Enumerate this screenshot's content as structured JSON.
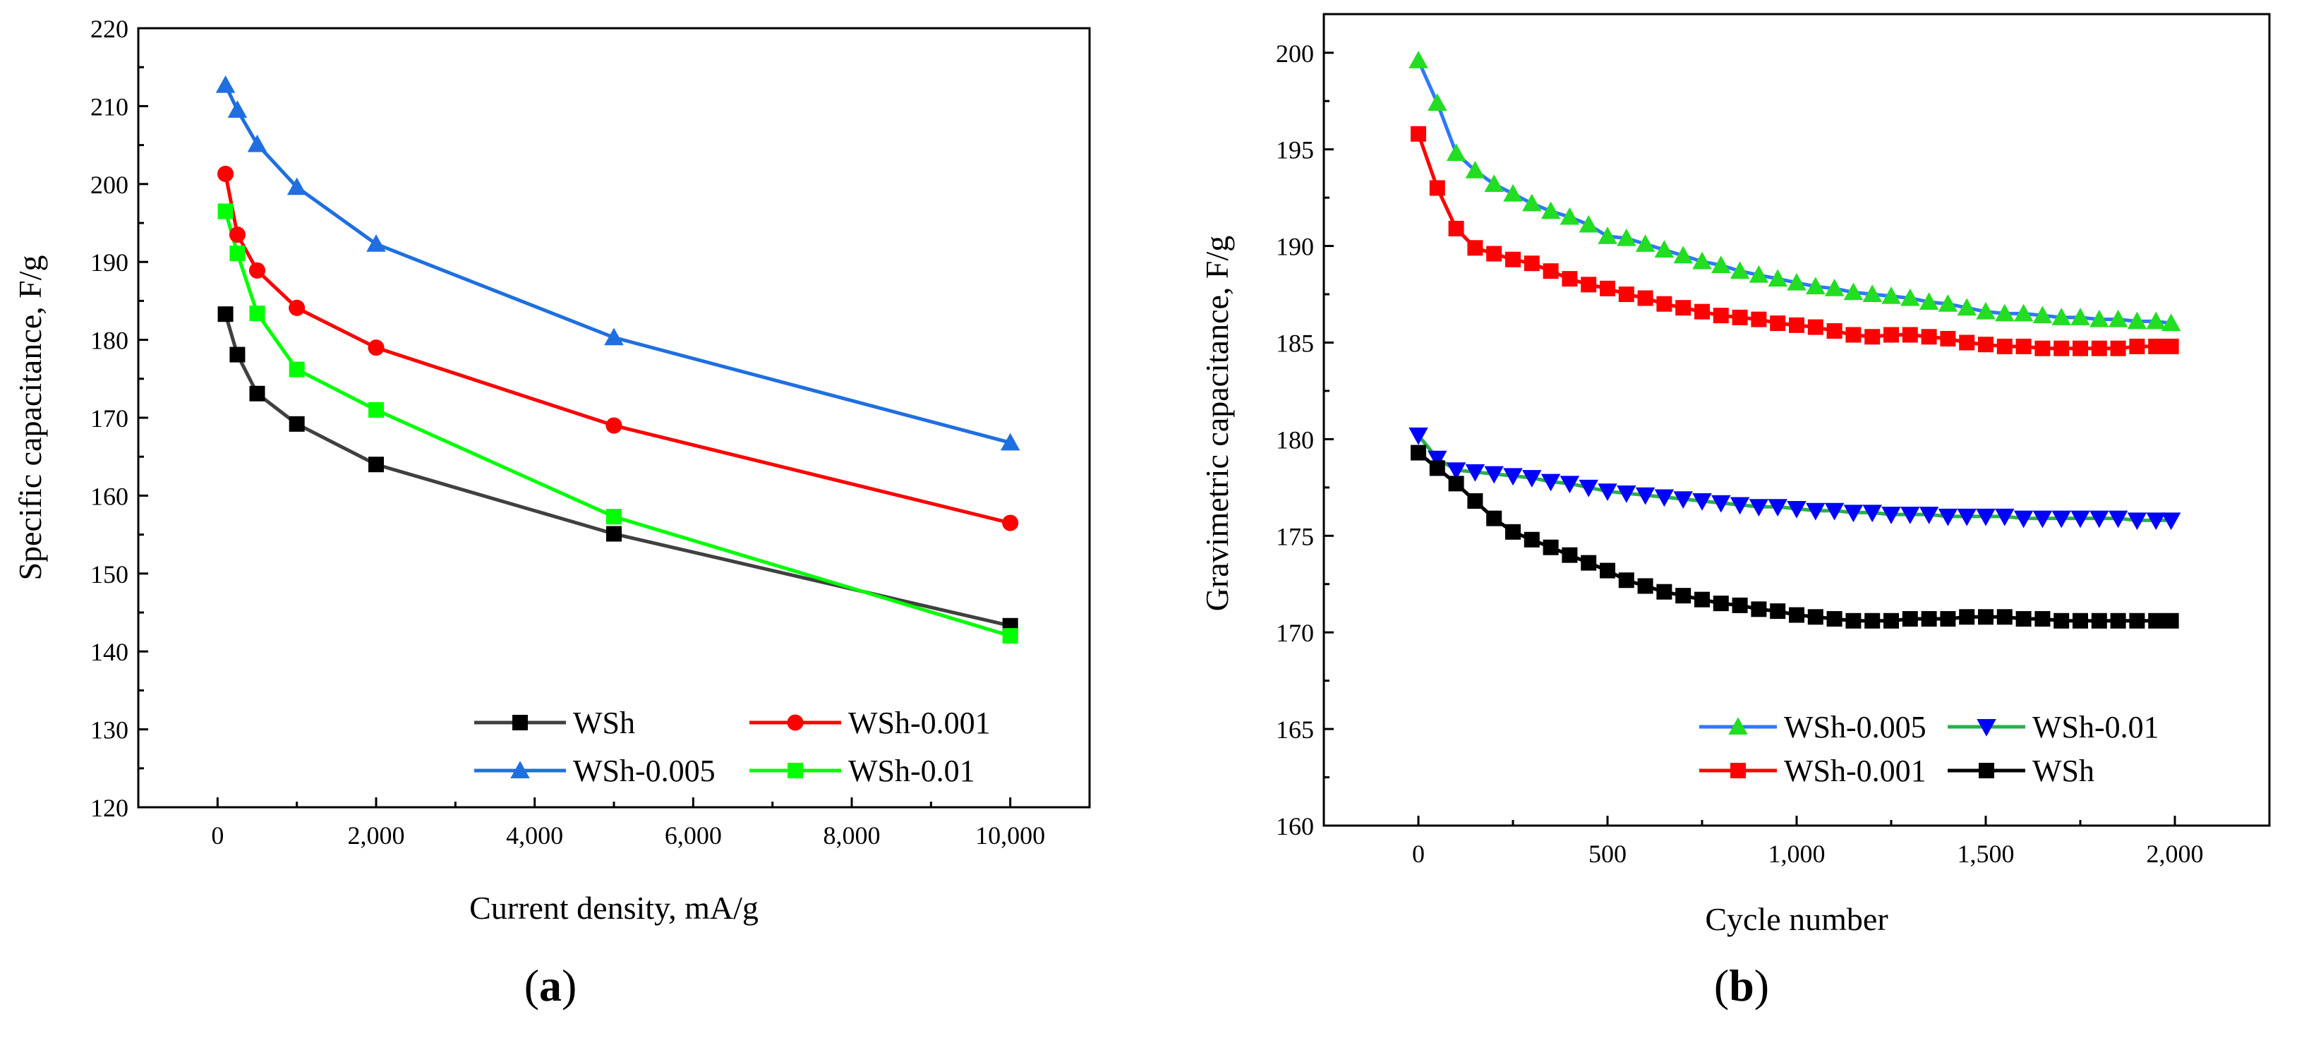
{
  "colors": {
    "WSh": "#000000",
    "WSh_line": "#404040",
    "WSh-0.001": "#ff0000",
    "WSh-0.005": "#1f6fe0",
    "WSh-0.01": "#00ff00",
    "WSh-0.01_b": "#0000ff",
    "WSh-0.005_b_line": "#2f78ff",
    "WSh-0.005_b_marker": "#22dd22",
    "WSh-0.01_b_line": "#2ab04a"
  },
  "chart_data": [
    {
      "panel": "(a)",
      "type": "line",
      "xlabel": "Current density, mA/g",
      "ylabel": "Specific capacitance, F/g",
      "xlim": [
        -1000,
        11000
      ],
      "ylim": [
        120,
        220
      ],
      "xticks": [
        0,
        2000,
        4000,
        6000,
        8000,
        10000
      ],
      "xtick_labels": [
        "0",
        "2,000",
        "4,000",
        "6,000",
        "8,000",
        "10,000"
      ],
      "yticks": [
        120,
        130,
        140,
        150,
        160,
        170,
        180,
        190,
        200,
        210,
        220
      ],
      "legend_position": "bottom-right",
      "x": [
        100,
        250,
        500,
        1000,
        2000,
        5000,
        10000
      ],
      "series": [
        {
          "name": "WSh",
          "marker": "square",
          "values": [
            183.3,
            178.1,
            173.1,
            169.2,
            164.0,
            155.1,
            143.3
          ]
        },
        {
          "name": "WSh-0.001",
          "marker": "circle",
          "values": [
            201.3,
            193.5,
            188.9,
            184.1,
            179.0,
            169.0,
            156.5
          ]
        },
        {
          "name": "WSh-0.005",
          "marker": "triangle-up",
          "values": [
            212.7,
            209.5,
            205.1,
            199.6,
            192.3,
            180.3,
            166.8
          ]
        },
        {
          "name": "WSh-0.01",
          "marker": "square",
          "values": [
            196.5,
            191.1,
            183.4,
            176.2,
            171.0,
            157.3,
            142.0
          ]
        }
      ]
    },
    {
      "panel": "(b)",
      "type": "line",
      "xlabel": "Cycle number",
      "ylabel": "Gravimetric capacitance, F/g",
      "xlim": [
        -250,
        2250
      ],
      "ylim": [
        160,
        202
      ],
      "xticks": [
        0,
        500,
        1000,
        1500,
        2000
      ],
      "xtick_labels": [
        "0",
        "500",
        "1,000",
        "1,500",
        "2,000"
      ],
      "yticks": [
        160,
        165,
        170,
        175,
        180,
        185,
        190,
        195,
        200
      ],
      "legend_position": "bottom-right",
      "x": [
        0,
        50,
        100,
        150,
        200,
        250,
        300,
        350,
        400,
        450,
        500,
        550,
        600,
        650,
        700,
        750,
        800,
        850,
        900,
        950,
        1000,
        1050,
        1100,
        1150,
        1200,
        1250,
        1300,
        1350,
        1400,
        1450,
        1500,
        1550,
        1600,
        1650,
        1700,
        1750,
        1800,
        1850,
        1900,
        1950,
        1990
      ],
      "series": [
        {
          "name": "WSh-0.005",
          "marker": "triangle-up",
          "values": [
            199.6,
            197.4,
            194.8,
            193.9,
            193.2,
            192.7,
            192.2,
            191.8,
            191.5,
            191.1,
            190.5,
            190.4,
            190.1,
            189.8,
            189.5,
            189.2,
            189.0,
            188.7,
            188.5,
            188.3,
            188.1,
            187.9,
            187.8,
            187.6,
            187.5,
            187.4,
            187.3,
            187.1,
            187.0,
            186.8,
            186.6,
            186.5,
            186.5,
            186.4,
            186.3,
            186.3,
            186.2,
            186.2,
            186.1,
            186.1,
            186.0
          ]
        },
        {
          "name": "WSh-0.01",
          "marker": "triangle-down",
          "values": [
            180.2,
            179.0,
            178.4,
            178.3,
            178.2,
            178.1,
            178.0,
            177.8,
            177.7,
            177.5,
            177.3,
            177.2,
            177.1,
            177.0,
            176.9,
            176.8,
            176.7,
            176.6,
            176.5,
            176.5,
            176.4,
            176.3,
            176.3,
            176.2,
            176.2,
            176.1,
            176.1,
            176.1,
            176.0,
            176.0,
            176.0,
            176.0,
            175.9,
            175.9,
            175.9,
            175.9,
            175.9,
            175.9,
            175.8,
            175.8,
            175.8
          ]
        },
        {
          "name": "WSh-0.001",
          "marker": "square",
          "values": [
            195.8,
            193.0,
            190.9,
            189.9,
            189.6,
            189.3,
            189.1,
            188.7,
            188.3,
            188.0,
            187.8,
            187.5,
            187.3,
            187.0,
            186.8,
            186.6,
            186.4,
            186.3,
            186.2,
            186.0,
            185.9,
            185.8,
            185.6,
            185.4,
            185.3,
            185.4,
            185.4,
            185.3,
            185.2,
            185.0,
            184.9,
            184.8,
            184.8,
            184.7,
            184.7,
            184.7,
            184.7,
            184.7,
            184.8,
            184.8,
            184.8
          ]
        },
        {
          "name": "WSh",
          "marker": "square",
          "values": [
            179.3,
            178.5,
            177.7,
            176.8,
            175.9,
            175.2,
            174.8,
            174.4,
            174.0,
            173.6,
            173.2,
            172.7,
            172.4,
            172.1,
            171.9,
            171.7,
            171.5,
            171.4,
            171.2,
            171.1,
            170.9,
            170.8,
            170.7,
            170.6,
            170.6,
            170.6,
            170.7,
            170.7,
            170.7,
            170.8,
            170.8,
            170.8,
            170.7,
            170.7,
            170.6,
            170.6,
            170.6,
            170.6,
            170.6,
            170.6,
            170.6
          ]
        }
      ]
    }
  ]
}
